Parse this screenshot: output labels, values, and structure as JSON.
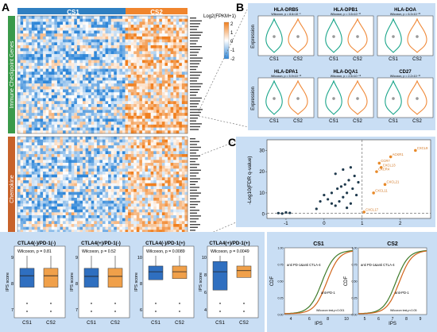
{
  "panel_letters": [
    "A",
    "B",
    "C",
    "D",
    "E"
  ],
  "panelA": {
    "group_labels": [
      "CS1",
      "CS2"
    ],
    "legend_title": "Log2(FPKM+1)",
    "legend_ticks": [
      "2",
      "1",
      "0",
      "-1",
      "-2"
    ],
    "row_groups": [
      "Immune Checkpoint Genes",
      "Chemokine"
    ],
    "colors": {
      "cs1": "#2f7fc1",
      "cs2": "#f0852d",
      "high": "#f07f1e",
      "low": "#2e86d8",
      "mid": "#ffffff"
    }
  },
  "panelB": {
    "ylabel": "Expression",
    "x_labels": [
      "CS1",
      "CS2"
    ],
    "genes": [
      {
        "name": "HLA-DRB5",
        "stat": "Wilcoxon, p = 8.6×10⁻⁵"
      },
      {
        "name": "HLA-DPB1",
        "stat": "Wilcoxon, p = 3.5×10⁻¹⁶"
      },
      {
        "name": "HLA-DOA",
        "stat": "Wilcoxon, p = 6.3×10⁻²⁸"
      },
      {
        "name": "HLA-DPA1",
        "stat": "Wilcoxon, p = 5.9×10⁻¹³"
      },
      {
        "name": "HLA-DQA1",
        "stat": "Wilcoxon, p = 2.5×10⁻⁰⁸"
      },
      {
        "name": "CD27",
        "stat": "Wilcoxon, p = 2.2×10⁻¹⁶"
      }
    ],
    "colors": {
      "cs1": "#1aa58a",
      "cs2": "#f08a3a"
    }
  },
  "panelC": {
    "chart_data": {
      "type": "scatter",
      "ylabel": "-Log10(FDR q-value)",
      "x_ticks": [
        -1,
        0,
        1,
        2
      ],
      "y_ticks": [
        0,
        10,
        20,
        30
      ],
      "xlim": [
        -1.5,
        2.8
      ],
      "ylim": [
        -2,
        35
      ],
      "threshold_x": 1,
      "points_dark": [
        [
          -1.2,
          0.5
        ],
        [
          -1.1,
          0.3
        ],
        [
          -1.0,
          0.8
        ],
        [
          -0.9,
          0.6
        ],
        [
          -0.2,
          2.5
        ],
        [
          -0.1,
          6
        ],
        [
          0.0,
          9
        ],
        [
          0.1,
          7
        ],
        [
          0.2,
          10
        ],
        [
          0.3,
          4
        ],
        [
          0.35,
          12
        ],
        [
          0.4,
          6
        ],
        [
          0.5,
          8
        ],
        [
          0.55,
          14
        ],
        [
          0.6,
          10
        ],
        [
          0.65,
          16
        ],
        [
          0.7,
          5
        ],
        [
          0.75,
          12
        ],
        [
          0.8,
          18
        ],
        [
          0.85,
          9
        ],
        [
          0.9,
          15
        ],
        [
          0.3,
          19
        ],
        [
          0.5,
          21
        ],
        [
          0.7,
          22
        ],
        [
          0.45,
          13
        ],
        [
          0.6,
          3
        ],
        [
          0.2,
          5
        ]
      ],
      "points_orange": [
        {
          "x": 2.4,
          "y": 30,
          "label": "CXCL9"
        },
        {
          "x": 1.75,
          "y": 27,
          "label": "ACKR1"
        },
        {
          "x": 1.45,
          "y": 24,
          "label": "CCR7"
        },
        {
          "x": 1.5,
          "y": 22,
          "label": "CXCL13"
        },
        {
          "x": 1.38,
          "y": 20,
          "label": "CXCR4"
        },
        {
          "x": 1.6,
          "y": 14,
          "label": "CXCL21"
        },
        {
          "x": 1.3,
          "y": 10,
          "label": "CXCL11"
        },
        {
          "x": 1.05,
          "y": 1,
          "label": "CXCL17"
        }
      ]
    }
  },
  "panelD": {
    "ylabel": "IPS score",
    "x_labels": [
      "CS1",
      "CS2"
    ],
    "plots": [
      {
        "title": "CTLA4(-)/PD-1(-)",
        "stat": "Wilcoxon, p = 0.81",
        "ticks": [
          "9",
          "8",
          "7"
        ]
      },
      {
        "title": "CTLA4(+)/PD-1(-)",
        "stat": "Wilcoxon, p = 0.52",
        "ticks": [
          "9",
          "8",
          "7"
        ]
      },
      {
        "title": "CTLA4(-)/PD-1(+)",
        "stat": "Wilcoxon, p = 0.0089",
        "ticks": [
          "10",
          "8",
          "6"
        ]
      },
      {
        "title": "CTLA4(+)/PD-1(+)",
        "stat": "Wilcoxon, p = 0.0049",
        "ticks": [
          "10",
          "8",
          "6",
          "4"
        ]
      }
    ],
    "colors": {
      "cs1": "#2f6fc0",
      "cs2": "#f0a04a"
    }
  },
  "panelE": {
    "ylabel": "CDF",
    "xlabel": "IPS",
    "plots": [
      {
        "title": "CS1",
        "label_top": "anti PD-1&anti CTLA-4",
        "label_bottom": "anti-PD-1",
        "stat": "Wilcoxon test,p<0.001",
        "x_ticks": [
          "4",
          "6",
          "8",
          "10"
        ]
      },
      {
        "title": "CS2",
        "label_top": "anti PD-1&anti CTLA-4",
        "label_bottom": "anti-PD-1",
        "stat": "Wilcoxon test,p<0.05",
        "x_ticks": [
          "5",
          "6",
          "7",
          "8",
          "9"
        ]
      }
    ],
    "y_ticks": [
      "0.00",
      "0.25",
      "0.50",
      "0.75",
      "1.00"
    ],
    "colors": {
      "green": "#3f7a2a",
      "orange": "#d1651b"
    }
  }
}
